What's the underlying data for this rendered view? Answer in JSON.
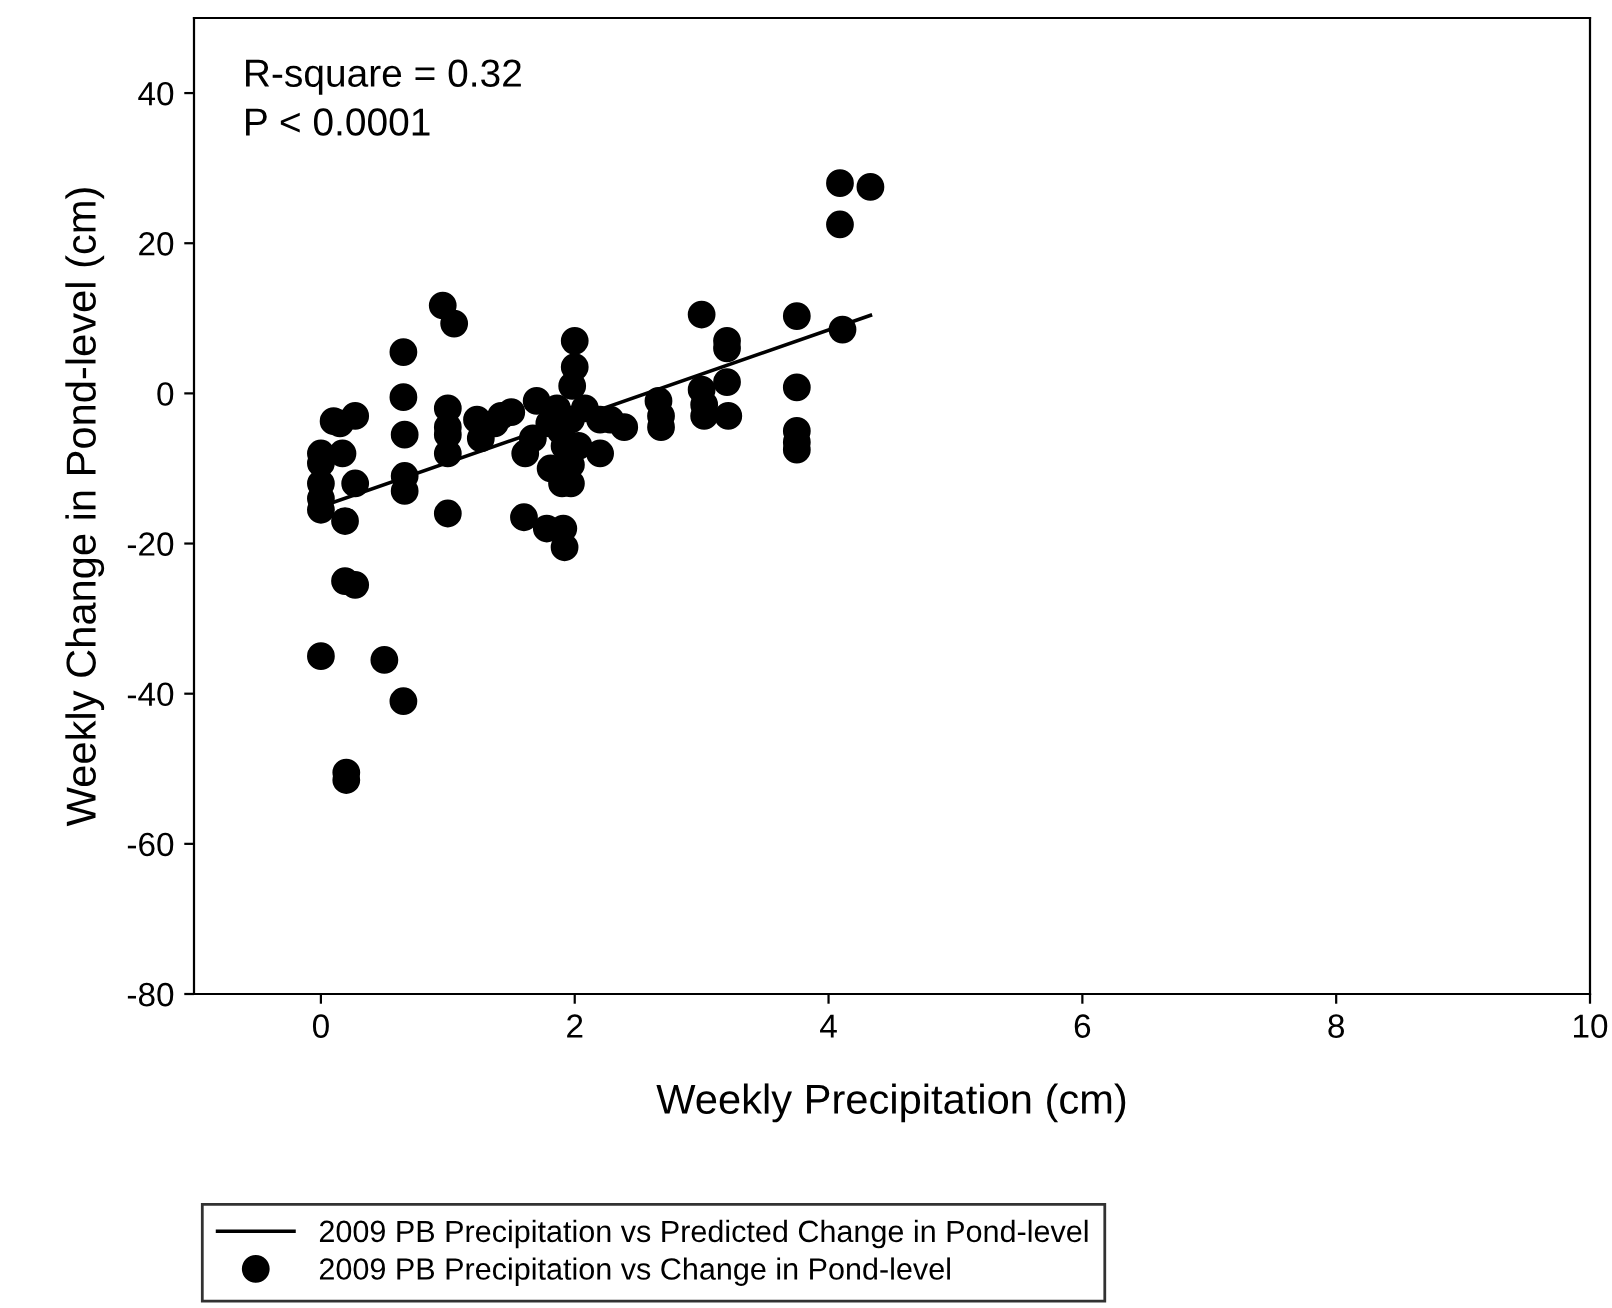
{
  "chart_data": {
    "type": "scatter",
    "xlabel": "Weekly Precipitation (cm)",
    "ylabel": "Weekly Change in Pond-level (cm)",
    "annotations": [
      "R-square = 0.32",
      "P < 0.0001"
    ],
    "xlim": [
      -1,
      10
    ],
    "ylim": [
      -80,
      50
    ],
    "xticks": [
      0,
      2,
      4,
      6,
      8,
      10
    ],
    "yticks": [
      -80,
      -60,
      -40,
      -20,
      0,
      20,
      40
    ],
    "grid": false,
    "legend": "bottom",
    "marker": "circle",
    "series": [
      {
        "name": "2009 PB Precipitation vs Predicted Change in Pond-level",
        "type": "line",
        "color": "#000000",
        "line_style": "solid",
        "marker": "none",
        "x": [
          0.05,
          4.33
        ],
        "values": [
          -14.8,
          10.4
        ]
      },
      {
        "name": "2009 PB Precipitation vs Change in Pond-level",
        "color": "#000000",
        "x": [
          0,
          0,
          0,
          0,
          0,
          0,
          0.1,
          0.15,
          0.17,
          0.19,
          0.19,
          0.2,
          0.27,
          0.2,
          0.27,
          0.27,
          0.5,
          0.65,
          0.65,
          0.66,
          0.66,
          0.66,
          0.65,
          0.96,
          1.05,
          1.0,
          1.0,
          1.0,
          1.0,
          1.0,
          1.23,
          1.26,
          1.37,
          1.42,
          1.5,
          1.6,
          1.67,
          1.7,
          1.8,
          1.61,
          1.81,
          1.86,
          1.89,
          1.92,
          1.97,
          1.98,
          2.0,
          2.0,
          1.97,
          2.03,
          1.97,
          1.9,
          1.91,
          1.78,
          1.92,
          2.08,
          2.2,
          2.2,
          2.28,
          2.39,
          2.66,
          2.68,
          2.68,
          3.0,
          3.0,
          3.02,
          3.02,
          3.2,
          3.2,
          3.2,
          3.21,
          3.75,
          3.75,
          3.75,
          3.75,
          3.75,
          4.09,
          4.33,
          4.09,
          4.11
        ],
        "values": [
          -8,
          -9.3,
          -12,
          -14,
          -15.5,
          -35,
          -3.7,
          -4,
          -8,
          -17,
          -25,
          -50.5,
          -25.5,
          -51.5,
          -12,
          -3,
          -35.5,
          5.5,
          -0.5,
          -5.5,
          -11,
          -13,
          -41,
          11.7,
          9.3,
          -2,
          -4.5,
          -5.5,
          -8,
          -16,
          -3.5,
          -6,
          -4,
          -3,
          -2.5,
          -16.5,
          -6,
          -1,
          -4,
          -8,
          -10,
          -2,
          -5,
          -7,
          -12,
          1,
          3.5,
          7,
          -3.5,
          -7,
          -9.5,
          -12,
          -18,
          -18,
          -20.5,
          -2,
          -3.5,
          -8,
          -3.5,
          -4.5,
          -1,
          -3,
          -4.5,
          10.5,
          0.5,
          -1.5,
          -3,
          7,
          6,
          1.5,
          -3,
          10.3,
          0.8,
          -5,
          -6.5,
          -7.5,
          28,
          27.5,
          22.5,
          8.5
        ]
      }
    ]
  }
}
